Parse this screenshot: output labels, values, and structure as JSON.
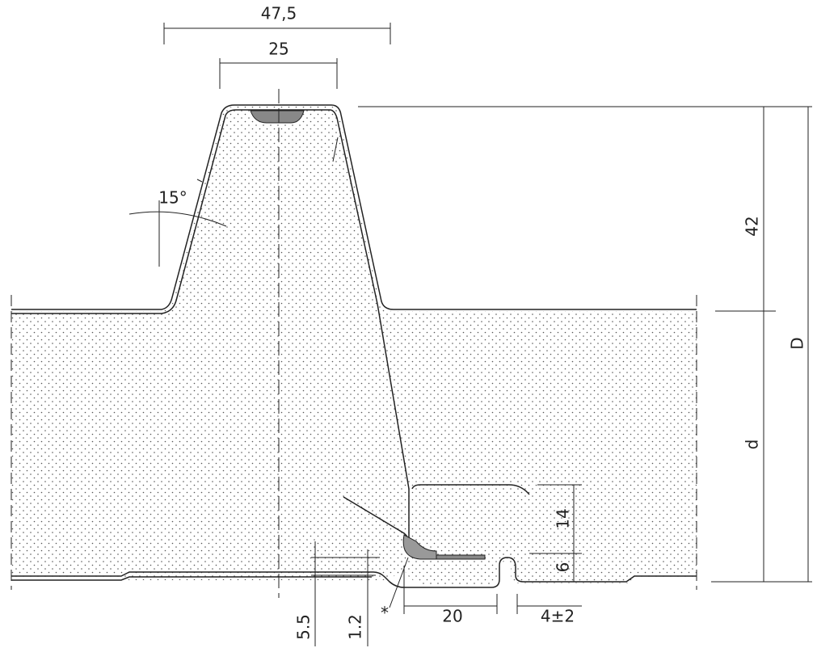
{
  "labels": {
    "width_top": "47,5",
    "width_rib": "25",
    "angle": "15°",
    "rib_height": "42",
    "total_depth": "D",
    "core_depth": "d",
    "joint_height": "14",
    "joint_step": "6",
    "bottom_offset": "5.5",
    "bottom_step": "1.2",
    "joint_width": "20",
    "joint_gap": "4±2",
    "note": "*"
  }
}
